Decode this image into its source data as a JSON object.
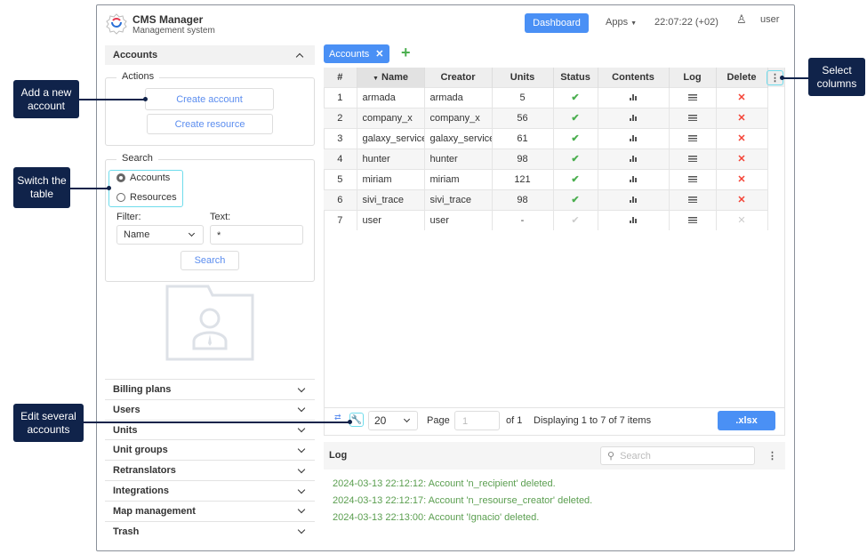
{
  "header": {
    "app_title": "CMS Manager",
    "app_subtitle": "Management system",
    "dashboard_label": "Dashboard",
    "apps_label": "Apps",
    "clock": "22:07:22 (+02)",
    "user": "user"
  },
  "sidebar": {
    "accounts_title": "Accounts",
    "actions_legend": "Actions",
    "create_account": "Create account",
    "create_resource": "Create resource",
    "search_legend": "Search",
    "radio_accounts": "Accounts",
    "radio_resources": "Resources",
    "filter_label": "Filter:",
    "filter_value": "Name",
    "text_label": "Text:",
    "text_value": "*",
    "search_button": "Search",
    "sections": [
      "Billing plans",
      "Users",
      "Units",
      "Unit groups",
      "Retranslators",
      "Integrations",
      "Map management",
      "Trash"
    ]
  },
  "tab": {
    "label": "Accounts"
  },
  "table": {
    "columns": [
      "#",
      "Name",
      "Creator",
      "Units",
      "Status",
      "Contents",
      "Log",
      "Delete"
    ],
    "rows": [
      {
        "n": "1",
        "name": "armada",
        "creator": "armada",
        "units": "5",
        "enabled": true
      },
      {
        "n": "2",
        "name": "company_x",
        "creator": "company_x",
        "units": "56",
        "enabled": true
      },
      {
        "n": "3",
        "name": "galaxy_service",
        "creator": "galaxy_service",
        "units": "61",
        "enabled": true
      },
      {
        "n": "4",
        "name": "hunter",
        "creator": "hunter",
        "units": "98",
        "enabled": true
      },
      {
        "n": "5",
        "name": "miriam",
        "creator": "miriam",
        "units": "121",
        "enabled": true
      },
      {
        "n": "6",
        "name": "sivi_trace",
        "creator": "sivi_trace",
        "units": "98",
        "enabled": true
      },
      {
        "n": "7",
        "name": "user",
        "creator": "user",
        "units": "-",
        "enabled": false
      }
    ]
  },
  "pager": {
    "per_page": "20",
    "page_label": "Page",
    "page_value": "1",
    "of_label": "of 1",
    "display": "Displaying 1 to 7 of 7 items",
    "export": ".xlsx"
  },
  "log": {
    "title": "Log",
    "search_placeholder": "Search",
    "lines": [
      "2024-03-13 22:12:12: Account 'n_recipient' deleted.",
      "2024-03-13 22:12:17: Account 'n_resourse_creator' deleted.",
      "2024-03-13 22:13:00: Account 'Ignacio' deleted."
    ]
  },
  "callouts": {
    "add_account": "Add a new account",
    "switch_table": "Switch the table",
    "edit_several": "Edit several accounts",
    "select_columns": "Select columns"
  },
  "colors": {
    "accent": "#4a90f5",
    "callout": "#10234a",
    "ok": "#4caf50",
    "delete": "#f44336",
    "log_text": "#5a9e4f",
    "highlight": "#6fdcec"
  }
}
